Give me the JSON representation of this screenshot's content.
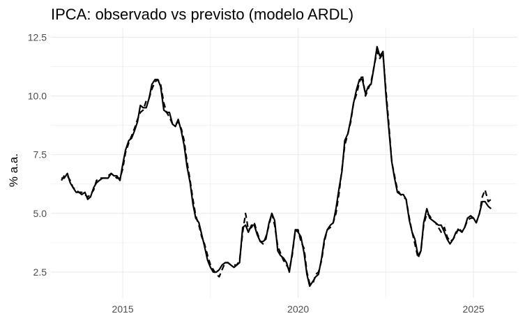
{
  "chart_data": {
    "type": "line",
    "title": "IPCA: observado vs previsto (modelo ARDL)",
    "xlabel": "",
    "ylabel": "% a.a.",
    "xlim": [
      2012.95,
      2026.25
    ],
    "ylim": [
      1.4,
      12.9
    ],
    "xticks": [
      2015,
      2020,
      2025
    ],
    "xtick_labels": [
      "2015",
      "2020",
      "2025"
    ],
    "yticks": [
      2.5,
      5.0,
      7.5,
      10.0,
      12.5
    ],
    "ytick_labels": [
      "2.5",
      "5.0",
      "7.5",
      "10.0",
      "12.5"
    ],
    "grid": true,
    "legend": "none",
    "colors": {
      "line": "#000000",
      "grid": "#ebebeb",
      "background": "#ffffff"
    },
    "series": [
      {
        "style": "solid",
        "x": [
          2013.25,
          2013.33,
          2013.42,
          2013.5,
          2013.58,
          2013.67,
          2013.75,
          2013.83,
          2013.92,
          2014.0,
          2014.08,
          2014.17,
          2014.25,
          2014.33,
          2014.42,
          2014.5,
          2014.58,
          2014.67,
          2014.75,
          2014.83,
          2014.92,
          2015.0,
          2015.08,
          2015.17,
          2015.25,
          2015.33,
          2015.42,
          2015.5,
          2015.58,
          2015.67,
          2015.75,
          2015.83,
          2015.92,
          2016.0,
          2016.08,
          2016.17,
          2016.25,
          2016.33,
          2016.42,
          2016.5,
          2016.58,
          2016.67,
          2016.75,
          2016.83,
          2016.92,
          2017.0,
          2017.08,
          2017.17,
          2017.25,
          2017.33,
          2017.42,
          2017.5,
          2017.58,
          2017.67,
          2017.75,
          2017.83,
          2017.92,
          2018.0,
          2018.08,
          2018.17,
          2018.25,
          2018.33,
          2018.42,
          2018.5,
          2018.58,
          2018.67,
          2018.75,
          2018.83,
          2018.92,
          2019.0,
          2019.08,
          2019.17,
          2019.25,
          2019.33,
          2019.42,
          2019.5,
          2019.58,
          2019.67,
          2019.75,
          2019.83,
          2019.92,
          2020.0,
          2020.08,
          2020.17,
          2020.25,
          2020.33,
          2020.42,
          2020.5,
          2020.58,
          2020.67,
          2020.75,
          2020.83,
          2020.92,
          2021.0,
          2021.08,
          2021.17,
          2021.25,
          2021.33,
          2021.42,
          2021.5,
          2021.58,
          2021.67,
          2021.75,
          2021.83,
          2021.92,
          2022.0,
          2022.08,
          2022.17,
          2022.25,
          2022.33,
          2022.42,
          2022.5,
          2022.58,
          2022.67,
          2022.75,
          2022.83,
          2022.92,
          2023.0,
          2023.08,
          2023.17,
          2023.25,
          2023.33,
          2023.42,
          2023.5,
          2023.58,
          2023.67,
          2023.75,
          2023.83,
          2023.92,
          2024.0,
          2024.08,
          2024.17,
          2024.25,
          2024.33,
          2024.42,
          2024.5,
          2024.58,
          2024.67,
          2024.75,
          2024.83,
          2024.92,
          2025.0,
          2025.08,
          2025.17,
          2025.25,
          2025.33,
          2025.42,
          2025.5
        ],
        "y": [
          6.5,
          6.5,
          6.7,
          6.3,
          6.1,
          5.9,
          5.9,
          5.8,
          5.9,
          5.6,
          5.7,
          6.1,
          6.3,
          6.4,
          6.5,
          6.5,
          6.5,
          6.7,
          6.6,
          6.6,
          6.4,
          7.1,
          7.7,
          8.1,
          8.2,
          8.5,
          8.9,
          9.6,
          9.5,
          9.5,
          9.9,
          10.5,
          10.7,
          10.7,
          10.4,
          9.4,
          9.3,
          9.3,
          8.8,
          8.7,
          9.0,
          8.5,
          7.9,
          7.0,
          6.3,
          5.4,
          4.8,
          4.6,
          4.1,
          3.6,
          3.0,
          2.7,
          2.5,
          2.5,
          2.6,
          2.8,
          2.9,
          2.9,
          2.8,
          2.7,
          2.8,
          2.9,
          4.4,
          4.5,
          4.2,
          4.5,
          4.5,
          4.1,
          3.8,
          3.8,
          3.9,
          4.6,
          5.0,
          4.7,
          3.4,
          3.2,
          3.1,
          2.9,
          2.5,
          3.3,
          4.3,
          4.2,
          4.0,
          3.3,
          2.4,
          1.9,
          2.1,
          2.3,
          2.4,
          3.1,
          3.9,
          4.3,
          4.5,
          4.6,
          5.2,
          6.1,
          6.8,
          8.1,
          8.4,
          9.0,
          9.7,
          10.3,
          10.7,
          10.7,
          10.1,
          10.4,
          10.5,
          11.3,
          12.1,
          11.7,
          11.9,
          10.1,
          8.7,
          7.2,
          6.5,
          5.9,
          5.8,
          5.8,
          5.6,
          4.7,
          4.2,
          3.9,
          3.2,
          3.4,
          4.6,
          5.2,
          4.8,
          4.7,
          4.6,
          4.5,
          4.5,
          4.2,
          3.9,
          3.7,
          3.9,
          4.2,
          4.3,
          4.2,
          4.4,
          4.8,
          4.9,
          4.8,
          4.6,
          5.0,
          5.5,
          5.5,
          5.3,
          5.2
        ]
      },
      {
        "style": "dashed",
        "x": [
          2013.25,
          2013.33,
          2013.42,
          2013.5,
          2013.58,
          2013.67,
          2013.75,
          2013.83,
          2013.92,
          2014.0,
          2014.08,
          2014.17,
          2014.25,
          2014.33,
          2014.42,
          2014.5,
          2014.58,
          2014.67,
          2014.75,
          2014.83,
          2014.92,
          2015.0,
          2015.08,
          2015.17,
          2015.25,
          2015.33,
          2015.42,
          2015.5,
          2015.58,
          2015.67,
          2015.75,
          2015.83,
          2015.92,
          2016.0,
          2016.08,
          2016.17,
          2016.25,
          2016.33,
          2016.42,
          2016.5,
          2016.58,
          2016.67,
          2016.75,
          2016.83,
          2016.92,
          2017.0,
          2017.08,
          2017.17,
          2017.25,
          2017.33,
          2017.42,
          2017.5,
          2017.58,
          2017.67,
          2017.75,
          2017.83,
          2017.92,
          2018.0,
          2018.08,
          2018.17,
          2018.25,
          2018.33,
          2018.42,
          2018.5,
          2018.58,
          2018.67,
          2018.75,
          2018.83,
          2018.92,
          2019.0,
          2019.08,
          2019.17,
          2019.25,
          2019.33,
          2019.42,
          2019.5,
          2019.58,
          2019.67,
          2019.75,
          2019.83,
          2019.92,
          2020.0,
          2020.08,
          2020.17,
          2020.25,
          2020.33,
          2020.42,
          2020.5,
          2020.58,
          2020.67,
          2020.75,
          2020.83,
          2020.92,
          2021.0,
          2021.08,
          2021.17,
          2021.25,
          2021.33,
          2021.42,
          2021.5,
          2021.58,
          2021.67,
          2021.75,
          2021.83,
          2021.92,
          2022.0,
          2022.08,
          2022.17,
          2022.25,
          2022.33,
          2022.42,
          2022.5,
          2022.58,
          2022.67,
          2022.75,
          2022.83,
          2022.92,
          2023.0,
          2023.08,
          2023.17,
          2023.25,
          2023.33,
          2023.42,
          2023.5,
          2023.58,
          2023.67,
          2023.75,
          2023.83,
          2023.92,
          2024.0,
          2024.08,
          2024.17,
          2024.25,
          2024.33,
          2024.42,
          2024.5,
          2024.58,
          2024.67,
          2024.75,
          2024.83,
          2024.92,
          2025.0,
          2025.08,
          2025.17,
          2025.25,
          2025.33,
          2025.42,
          2025.5
        ],
        "y": [
          6.4,
          6.6,
          6.6,
          6.4,
          6.1,
          6.0,
          5.9,
          5.9,
          5.8,
          5.7,
          5.8,
          6.0,
          6.4,
          6.5,
          6.5,
          6.5,
          6.6,
          6.7,
          6.6,
          6.5,
          6.5,
          6.9,
          7.6,
          8.0,
          8.3,
          8.6,
          9.0,
          9.3,
          9.4,
          9.8,
          9.9,
          10.3,
          10.6,
          10.7,
          10.5,
          9.7,
          9.3,
          9.1,
          8.8,
          8.8,
          8.9,
          8.6,
          8.1,
          7.2,
          6.4,
          5.6,
          4.9,
          4.5,
          4.0,
          3.7,
          3.2,
          2.8,
          2.6,
          2.4,
          2.3,
          2.6,
          2.9,
          2.9,
          2.8,
          2.8,
          2.8,
          3.0,
          4.2,
          5.0,
          4.3,
          4.4,
          4.6,
          4.2,
          3.8,
          3.7,
          4.0,
          4.5,
          5.0,
          4.5,
          3.6,
          3.3,
          3.0,
          2.8,
          2.6,
          3.2,
          4.3,
          4.3,
          3.8,
          3.5,
          2.5,
          2.0,
          2.0,
          2.4,
          2.5,
          3.0,
          3.8,
          4.3,
          4.4,
          4.6,
          5.0,
          5.9,
          6.9,
          7.9,
          8.4,
          8.9,
          9.7,
          10.1,
          10.6,
          10.9,
          10.0,
          10.3,
          10.6,
          11.3,
          11.9,
          11.6,
          11.8,
          10.3,
          8.9,
          7.2,
          6.6,
          6.0,
          5.8,
          5.7,
          5.6,
          4.8,
          4.2,
          3.7,
          3.1,
          3.4,
          4.5,
          5.0,
          4.9,
          4.7,
          4.6,
          4.4,
          4.2,
          4.4,
          4.0,
          3.8,
          3.9,
          4.1,
          4.4,
          4.2,
          4.4,
          4.7,
          4.8,
          4.8,
          4.6,
          5.0,
          5.7,
          6.0,
          5.5,
          5.6
        ]
      }
    ]
  }
}
